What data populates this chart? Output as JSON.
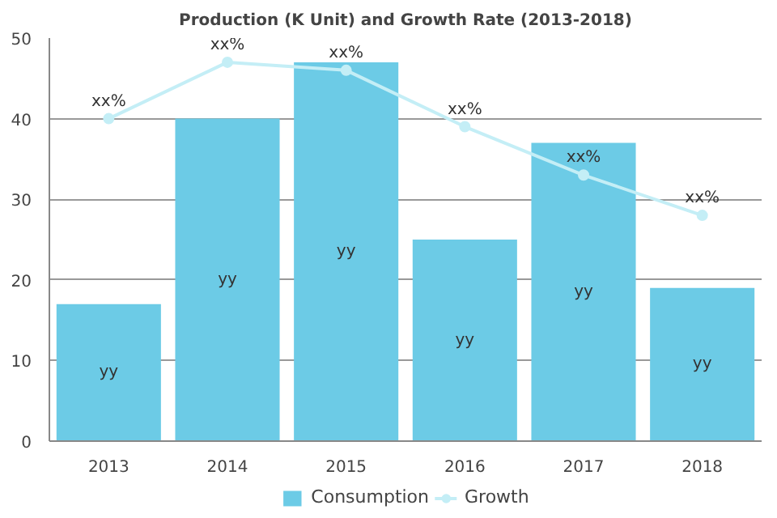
{
  "chart_data": {
    "type": "bar",
    "title": "Production (K Unit) and Growth Rate (2013-2018)",
    "categories": [
      "2013",
      "2014",
      "2015",
      "2016",
      "2017",
      "2018"
    ],
    "series": [
      {
        "name": "Consumption",
        "color": "#6ccbe6",
        "values": [
          17,
          40,
          47,
          25,
          37,
          19
        ],
        "value_labels": [
          "yy",
          "yy",
          "yy",
          "yy",
          "yy",
          "yy"
        ]
      },
      {
        "name": "Growth",
        "type": "line",
        "color": "#c4eef6",
        "marker": "circle",
        "values": [
          40,
          47,
          46,
          39,
          33,
          28
        ],
        "value_labels": [
          "xx%",
          "xx%",
          "xx%",
          "xx%",
          "xx%",
          "xx%"
        ]
      }
    ],
    "ylim": [
      0,
      50
    ],
    "yticks": [
      0,
      10,
      20,
      30,
      40,
      50
    ],
    "grid": "y",
    "legend": "bottom"
  }
}
